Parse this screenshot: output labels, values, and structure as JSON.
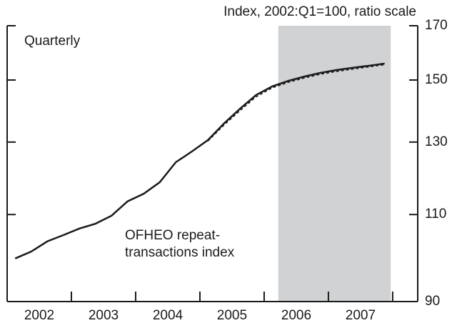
{
  "chart_data": {
    "type": "line",
    "axis_title": "Index, 2002:Q1=100, ratio scale",
    "annotations": [
      "Quarterly",
      "OFHEO repeat-",
      "transactions index"
    ],
    "x": [
      2002.125,
      2002.375,
      2002.625,
      2002.875,
      2003.125,
      2003.375,
      2003.625,
      2003.875,
      2004.125,
      2004.375,
      2004.625,
      2004.875,
      2005.125,
      2005.375,
      2005.625,
      2005.875,
      2006.125,
      2006.375,
      2006.625,
      2006.875,
      2007.125,
      2007.375,
      2007.625,
      2007.875
    ],
    "series": [
      {
        "color": "#1a1a1a",
        "dash": false,
        "values": [
          99.4,
          101.0,
          103.4,
          104.9,
          106.5,
          107.7,
          109.7,
          113.4,
          115.4,
          118.5,
          124.1,
          127.2,
          130.6,
          135.7,
          140.4,
          144.9,
          147.8,
          149.7,
          151.2,
          152.5,
          153.5,
          154.3,
          155.0,
          155.8
        ]
      },
      {
        "color": "#1a1a1a",
        "dash": true,
        "values": [
          null,
          null,
          null,
          null,
          null,
          null,
          null,
          null,
          null,
          null,
          null,
          null,
          130.3,
          135.2,
          139.8,
          144.3,
          147.3,
          149.2,
          150.7,
          152.0,
          153.0,
          153.8,
          154.6,
          155.4
        ]
      }
    ],
    "xlim": [
      2002,
      2008.39
    ],
    "xticks": [
      {
        "value": 2002.5,
        "label": "2002"
      },
      {
        "value": 2003.5,
        "label": "2003"
      },
      {
        "value": 2004.5,
        "label": "2004"
      },
      {
        "value": 2005.5,
        "label": "2005"
      },
      {
        "value": 2006.5,
        "label": "2006"
      },
      {
        "value": 2007.5,
        "label": "2007"
      }
    ],
    "xtick_marks": [
      2003,
      2004,
      2005,
      2006,
      2007,
      2008
    ],
    "ylim": [
      90,
      170
    ],
    "yticks": [
      90,
      110,
      130,
      150,
      170
    ],
    "log_y": true,
    "shade": [
      2006.22,
      2007.97
    ],
    "shade_color": "#d1d2d4"
  }
}
